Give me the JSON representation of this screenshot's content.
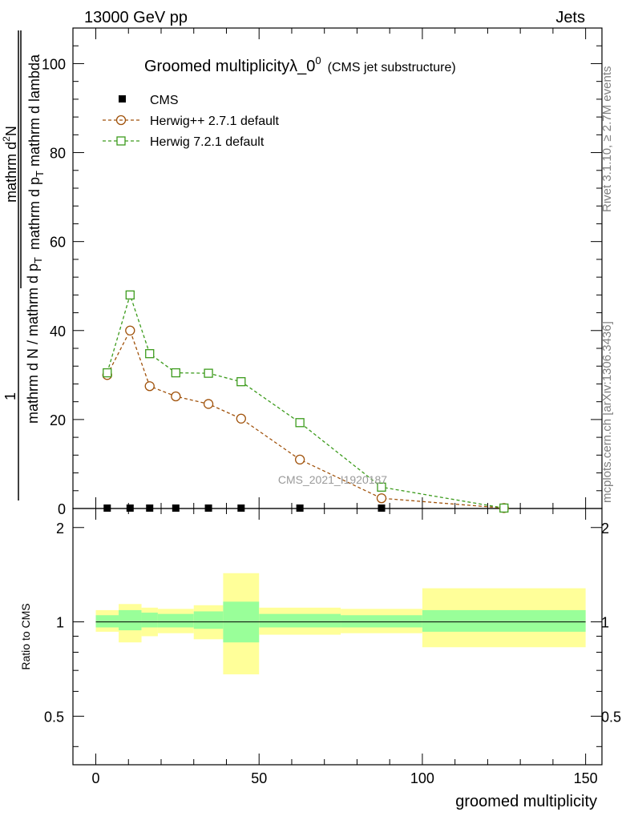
{
  "header": {
    "left": "13000 GeV pp",
    "right": "Jets"
  },
  "chart_data": {
    "type": "line",
    "title": "Groomed multiplicityλ_0",
    "title_sup": "0",
    "subtitle": "(CMS jet substructure)",
    "ylabel_main": {
      "num1": "mathrm d",
      "num1_sup": "2",
      "num2": "N",
      "den": "mathrm d p",
      "den_sub": "T",
      "den2": " mathrm d lambda",
      "pre_num": "1",
      "pre_den": "mathrm d N / mathrm d p",
      "pre_den_sub": "T"
    },
    "ylabel_ratio": "Ratio to CMS",
    "xlabel": "groomed multiplicity",
    "xlim": [
      -7,
      155
    ],
    "ylim": [
      0,
      108
    ],
    "ratio_ylim": [
      0.35,
      2.3
    ],
    "xticks": [
      "0",
      "50",
      "100",
      "150"
    ],
    "yticks": [
      "0",
      "20",
      "40",
      "60",
      "80",
      "100"
    ],
    "ratio_yticks": [
      "0.5",
      "1",
      "2"
    ],
    "watermark": "CMS_2021_I1920187",
    "side_text_top": "Rivet 3.1.10, ≥ 2.7M events",
    "side_text_bottom": "mcplots.cern.ch [arXiv:1306.3436]",
    "legend_position": "top-left",
    "series": [
      {
        "name": "CMS",
        "style": "data",
        "color": "#000000",
        "x": [
          3.5,
          10.5,
          16.5,
          24.5,
          34.5,
          44.5,
          62.5,
          87.5,
          125
        ],
        "values": [
          0,
          0,
          0,
          0,
          0,
          0,
          0,
          0,
          0
        ]
      },
      {
        "name": "Herwig++ 2.7.1 default",
        "style": "circle",
        "color": "#a0520b",
        "x": [
          3.5,
          10.5,
          16.5,
          24.5,
          34.5,
          44.5,
          62.5,
          87.5,
          125
        ],
        "values": [
          30,
          40,
          27.5,
          25.2,
          23.5,
          20.2,
          11,
          2.3,
          0.1
        ]
      },
      {
        "name": "Herwig 7.2.1 default",
        "style": "square",
        "color": "#3c9b1c",
        "x": [
          3.5,
          10.5,
          16.5,
          24.5,
          34.5,
          44.5,
          62.5,
          87.5,
          125
        ],
        "values": [
          30.5,
          48,
          34.8,
          30.5,
          30.4,
          28.5,
          19.3,
          4.8,
          0.1
        ]
      }
    ],
    "ratio_bands": {
      "inner_color": "#99ff99",
      "outer_color": "#ffff99",
      "bins": [
        {
          "x0": 0,
          "x1": 7,
          "inner": [
            0.96,
            1.05
          ],
          "outer": [
            0.93,
            1.09
          ]
        },
        {
          "x0": 7,
          "x1": 14,
          "inner": [
            0.94,
            1.09
          ],
          "outer": [
            0.86,
            1.14
          ]
        },
        {
          "x0": 14,
          "x1": 19,
          "inner": [
            0.96,
            1.07
          ],
          "outer": [
            0.9,
            1.11
          ]
        },
        {
          "x0": 19,
          "x1": 30,
          "inner": [
            0.96,
            1.06
          ],
          "outer": [
            0.92,
            1.1
          ]
        },
        {
          "x0": 30,
          "x1": 39,
          "inner": [
            0.95,
            1.08
          ],
          "outer": [
            0.88,
            1.13
          ]
        },
        {
          "x0": 39,
          "x1": 50,
          "inner": [
            0.86,
            1.16
          ],
          "outer": [
            0.68,
            1.43
          ]
        },
        {
          "x0": 50,
          "x1": 75,
          "inner": [
            0.96,
            1.06
          ],
          "outer": [
            0.91,
            1.11
          ]
        },
        {
          "x0": 75,
          "x1": 100,
          "inner": [
            0.96,
            1.05
          ],
          "outer": [
            0.92,
            1.1
          ]
        },
        {
          "x0": 100,
          "x1": 150,
          "inner": [
            0.93,
            1.09
          ],
          "outer": [
            0.83,
            1.28
          ]
        }
      ]
    }
  }
}
